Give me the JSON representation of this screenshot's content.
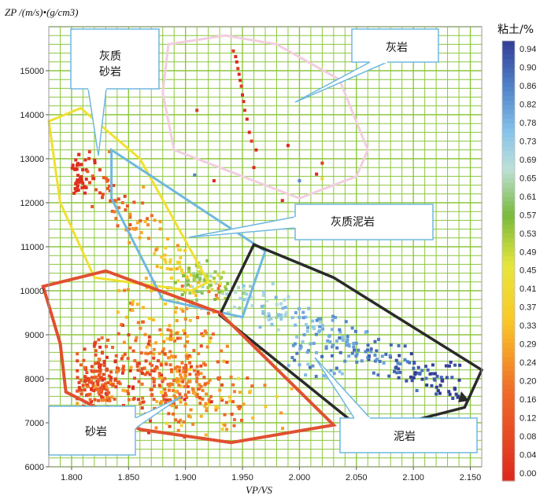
{
  "chart_data": {
    "type": "scatter",
    "title": "",
    "xlabel": "VP/VS",
    "ylabel": "ZP /(m/s)•(g/cm3)",
    "xlim": [
      1.78,
      2.16
    ],
    "ylim": [
      6000,
      16000
    ],
    "x_ticks": [
      "1.800",
      "1.850",
      "1.900",
      "1.950",
      "2.000",
      "2.050",
      "2.100",
      "2.150"
    ],
    "y_ticks": [
      "6000",
      "7000",
      "8000",
      "9000",
      "10000",
      "11000",
      "12000",
      "13000",
      "14000",
      "15000"
    ],
    "grid": true,
    "colorbar": {
      "title": "粘土/%",
      "ticks": [
        "0.94",
        "0.90",
        "0.86",
        "0.82",
        "0.78",
        "0.73",
        "0.69",
        "0.65",
        "0.61",
        "0.57",
        "0.53",
        "0.49",
        "0.45",
        "0.41",
        "0.37",
        "0.33",
        "0.29",
        "0.24",
        "0.20",
        "0.16",
        "0.12",
        "0.08",
        "0.04",
        "0.00"
      ],
      "range": [
        0,
        0.96
      ]
    },
    "regions": [
      {
        "name": "灰岩",
        "color": "#f2cde0",
        "polygon": [
          [
            1.885,
            15600
          ],
          [
            1.935,
            15800
          ],
          [
            1.98,
            15600
          ],
          [
            2.035,
            14800
          ],
          [
            2.06,
            13200
          ],
          [
            2.05,
            12600
          ],
          [
            2.0,
            12100
          ],
          [
            1.97,
            12400
          ],
          [
            1.89,
            13200
          ],
          [
            1.88,
            14500
          ]
        ]
      },
      {
        "name": "灰质砂岩",
        "color": "#f0e030",
        "polygon": [
          [
            1.78,
            13850
          ],
          [
            1.808,
            14150
          ],
          [
            1.86,
            13000
          ],
          [
            1.92,
            10200
          ],
          [
            1.905,
            10000
          ],
          [
            1.82,
            10300
          ],
          [
            1.79,
            12000
          ]
        ]
      },
      {
        "name": "灰质泥岩",
        "color": "#6fb8df",
        "polygon": [
          [
            1.835,
            13200
          ],
          [
            1.97,
            10900
          ],
          [
            1.95,
            9400
          ],
          [
            1.88,
            9800
          ],
          [
            1.835,
            12100
          ]
        ]
      },
      {
        "name": "泥岩",
        "color": "#2a2a2a",
        "polygon": [
          [
            1.96,
            11050
          ],
          [
            2.03,
            10300
          ],
          [
            2.16,
            8200
          ],
          [
            2.145,
            7350
          ],
          [
            2.1,
            7050
          ],
          [
            2.05,
            6950
          ],
          [
            1.93,
            9450
          ]
        ]
      },
      {
        "name": "砂岩",
        "color": "#e05030",
        "polygon": [
          [
            1.775,
            10100
          ],
          [
            1.83,
            10450
          ],
          [
            1.93,
            9500
          ],
          [
            2.03,
            6950
          ],
          [
            1.94,
            6550
          ],
          [
            1.86,
            6850
          ],
          [
            1.795,
            7700
          ],
          [
            1.79,
            8800
          ]
        ]
      }
    ],
    "series": [
      {
        "name": "灰岩",
        "clay_range": [
          0.0,
          0.12
        ],
        "x_center": 1.95,
        "y_center": 14700,
        "count": 40,
        "points": [
          [
            1.942,
            15450
          ],
          [
            1.944,
            15320
          ],
          [
            1.945,
            15200
          ],
          [
            1.946,
            15050
          ],
          [
            1.947,
            14920
          ],
          [
            1.948,
            14780
          ],
          [
            1.949,
            14650
          ],
          [
            1.95,
            14450
          ],
          [
            1.951,
            14300
          ],
          [
            1.952,
            14100
          ],
          [
            1.954,
            13900
          ],
          [
            1.956,
            13600
          ],
          [
            1.958,
            13400
          ],
          [
            1.962,
            13200
          ],
          [
            1.96,
            12800
          ],
          [
            1.91,
            14100
          ],
          [
            1.99,
            13300
          ],
          [
            1.985,
            12050
          ],
          [
            2.02,
            12900
          ],
          [
            2.015,
            12650
          ],
          [
            1.925,
            12500
          ]
        ]
      },
      {
        "name": "灰质砂岩",
        "clay_range": [
          0.0,
          0.45
        ],
        "x_center": 1.83,
        "y_center": 11800,
        "count": 140
      },
      {
        "name": "灰质泥岩",
        "clay_range": [
          0.45,
          0.78
        ],
        "x_center": 1.915,
        "y_center": 10200,
        "count": 70
      },
      {
        "name": "泥岩",
        "clay_range": [
          0.6,
          0.96
        ],
        "x_center": 2.04,
        "y_center": 8800,
        "count": 220
      },
      {
        "name": "砂岩",
        "clay_range": [
          0.0,
          0.45
        ],
        "x_center": 1.88,
        "y_center": 8100,
        "count": 520
      }
    ],
    "annotations": [
      {
        "text": "灰质",
        "text2": "砂岩"
      },
      {
        "text": "灰岩"
      },
      {
        "text": "灰质泥岩"
      },
      {
        "text": "泥岩"
      },
      {
        "text": "砂岩"
      }
    ]
  }
}
